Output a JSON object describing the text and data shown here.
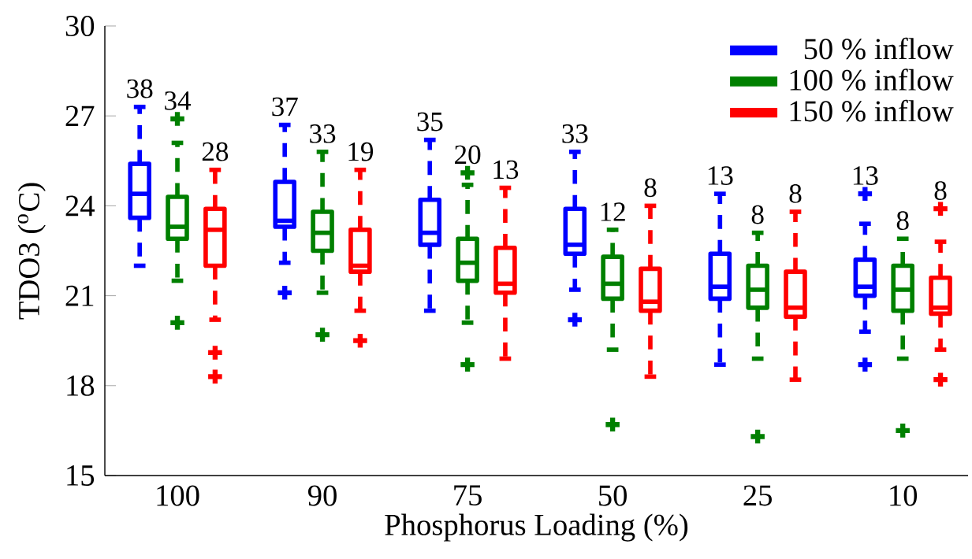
{
  "chart_data": {
    "type": "box",
    "xlabel": "Phosphorus Loading (%)",
    "ylabel": "TDO3 ($^{o}$C)",
    "categories": [
      "100",
      "90",
      "75",
      "50",
      "25",
      "10"
    ],
    "ylim": [
      15,
      30
    ],
    "yticks": [
      15,
      18,
      21,
      24,
      27,
      30
    ],
    "legend": "top right",
    "marker": "cross",
    "line_style": "dashed",
    "grid": false,
    "series": [
      {
        "name": "50 % inflow",
        "color": "#0000ff",
        "boxes": [
          {
            "low": 22.0,
            "q1": 23.6,
            "median": 24.4,
            "q3": 25.4,
            "high": 27.3
          },
          {
            "low": 22.1,
            "q1": 23.3,
            "median": 23.5,
            "q3": 24.8,
            "high": 26.7,
            "outliers": [
              21.1
            ]
          },
          {
            "low": 20.5,
            "q1": 22.7,
            "median": 23.1,
            "q3": 24.2,
            "high": 26.2
          },
          {
            "low": 21.2,
            "q1": 22.4,
            "median": 22.7,
            "q3": 23.9,
            "high": 25.8,
            "outliers": [
              20.2
            ]
          },
          {
            "low": 18.7,
            "q1": 20.9,
            "median": 21.3,
            "q3": 22.4,
            "high": 24.4
          },
          {
            "low": 19.8,
            "q1": 21.0,
            "median": 21.3,
            "q3": 22.2,
            "high": 23.4,
            "outliers": [
              24.4,
              18.7
            ]
          }
        ]
      },
      {
        "name": "100 % inflow",
        "color": "#008000",
        "boxes": [
          {
            "low": 21.5,
            "q1": 22.9,
            "median": 23.3,
            "q3": 24.3,
            "high": 26.1,
            "outliers": [
              26.9,
              20.1
            ]
          },
          {
            "low": 21.1,
            "q1": 22.5,
            "median": 23.1,
            "q3": 23.8,
            "high": 25.8,
            "outliers": [
              19.7
            ]
          },
          {
            "low": 20.1,
            "q1": 21.5,
            "median": 22.1,
            "q3": 22.9,
            "high": 24.7,
            "outliers": [
              25.1,
              18.7
            ]
          },
          {
            "low": 19.2,
            "q1": 20.9,
            "median": 21.4,
            "q3": 22.3,
            "high": 23.2,
            "outliers": [
              16.7
            ]
          },
          {
            "low": 18.9,
            "q1": 20.6,
            "median": 21.2,
            "q3": 22.0,
            "high": 23.1,
            "outliers": [
              16.3
            ]
          },
          {
            "low": 18.9,
            "q1": 20.5,
            "median": 21.2,
            "q3": 22.0,
            "high": 22.9,
            "outliers": [
              16.5
            ]
          }
        ]
      },
      {
        "name": "150 % inflow",
        "color": "#ff0000",
        "boxes": [
          {
            "low": 20.2,
            "q1": 22.0,
            "median": 23.2,
            "q3": 23.9,
            "high": 25.2,
            "outliers": [
              19.1,
              18.3
            ]
          },
          {
            "low": 20.5,
            "q1": 21.8,
            "median": 22.0,
            "q3": 23.2,
            "high": 25.2,
            "outliers": [
              19.5
            ]
          },
          {
            "low": 18.9,
            "q1": 21.1,
            "median": 21.4,
            "q3": 22.6,
            "high": 24.6
          },
          {
            "low": 18.3,
            "q1": 20.5,
            "median": 20.8,
            "q3": 21.9,
            "high": 24.0
          },
          {
            "low": 18.2,
            "q1": 20.3,
            "median": 20.6,
            "q3": 21.8,
            "high": 23.8
          },
          {
            "low": 19.2,
            "q1": 20.4,
            "median": 20.6,
            "q3": 21.6,
            "high": 22.8,
            "outliers": [
              23.9,
              18.2
            ]
          }
        ]
      }
    ],
    "annotations": [
      "38",
      "34",
      "28",
      "37",
      "33",
      "19",
      "35",
      "20",
      "13",
      "33",
      "12",
      "8",
      "13",
      "8",
      "8",
      "13",
      "8",
      "8"
    ]
  }
}
